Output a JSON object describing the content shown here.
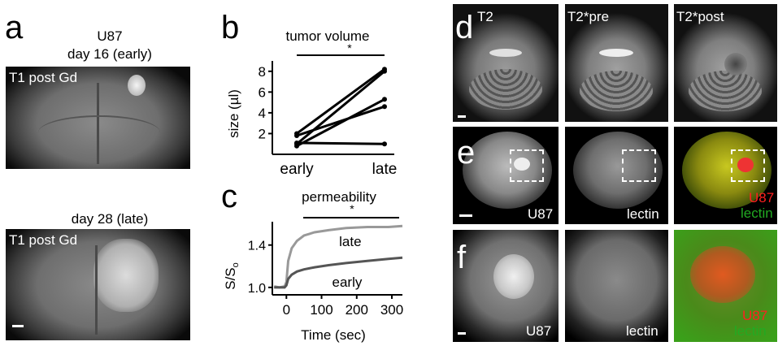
{
  "panel_a": {
    "letter": "a",
    "cell_line": "U87",
    "early_caption": "day 16 (early)",
    "late_caption": "day 28 (late)",
    "image_label_top": "T1 post Gd",
    "image_label_bottom": "T1 post Gd"
  },
  "panel_b": {
    "letter": "b",
    "chart_data": {
      "type": "line",
      "title": "tumor volume",
      "ylabel": "size (µl)",
      "categories": [
        "early",
        "late"
      ],
      "ylim": [
        0,
        9
      ],
      "yticks": [
        2,
        4,
        6,
        8
      ],
      "significance": "*",
      "series": [
        {
          "values": [
            2.0,
            8.2
          ]
        },
        {
          "values": [
            1.8,
            4.6
          ]
        },
        {
          "values": [
            1.0,
            8.0
          ]
        },
        {
          "values": [
            0.8,
            5.3
          ]
        },
        {
          "values": [
            1.1,
            1.0
          ]
        }
      ]
    }
  },
  "panel_c": {
    "letter": "c",
    "chart_data": {
      "type": "line",
      "title": "permeability",
      "xlabel": "Time (sec)",
      "ylabel": "S/S",
      "ylabel_sub": "o",
      "xlim": [
        -40,
        330
      ],
      "ylim": [
        0.93,
        1.62
      ],
      "xticks": [
        0,
        100,
        200,
        300
      ],
      "yticks": [
        1.0,
        1.4
      ],
      "significance": "*",
      "series": [
        {
          "name": "late",
          "color": "#999999",
          "x": [
            -35,
            -20,
            -5,
            0,
            5,
            15,
            30,
            50,
            80,
            120,
            170,
            230,
            290,
            330
          ],
          "y": [
            1.01,
            1.0,
            1.01,
            1.05,
            1.25,
            1.37,
            1.44,
            1.49,
            1.52,
            1.54,
            1.56,
            1.57,
            1.57,
            1.58
          ]
        },
        {
          "name": "early",
          "color": "#555555",
          "x": [
            -35,
            -20,
            -5,
            0,
            5,
            15,
            30,
            50,
            80,
            120,
            170,
            230,
            290,
            330
          ],
          "y": [
            1.0,
            1.0,
            1.0,
            1.02,
            1.08,
            1.12,
            1.15,
            1.17,
            1.19,
            1.21,
            1.23,
            1.25,
            1.27,
            1.28
          ]
        }
      ]
    }
  },
  "panel_d": {
    "letter": "d",
    "labels": [
      "T2",
      "T2*pre",
      "T2*post"
    ]
  },
  "panel_e": {
    "letter": "e",
    "labels": [
      "U87",
      "lectin",
      "U87",
      "lectin"
    ],
    "colors": {
      "u87": "#ff2020",
      "lectin": "#22aa22"
    }
  },
  "panel_f": {
    "letter": "f",
    "labels": [
      "U87",
      "lectin",
      "U87",
      "lectin"
    ]
  }
}
